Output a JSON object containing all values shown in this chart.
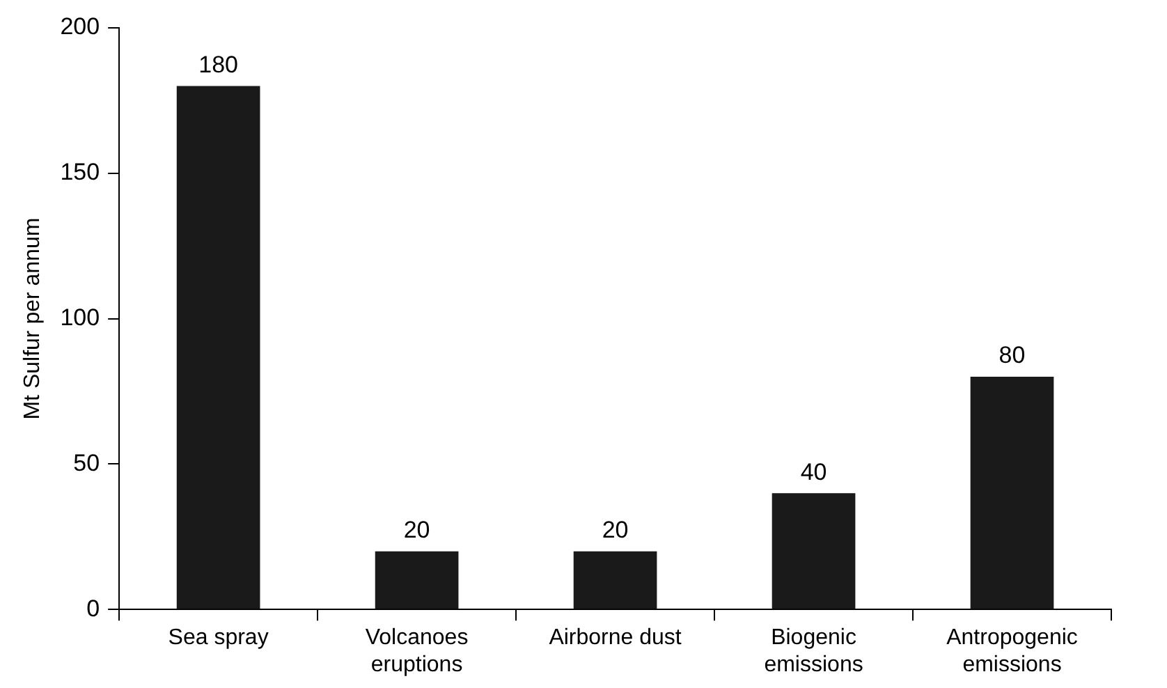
{
  "chart_data": {
    "type": "bar",
    "ylabel": "Mt Sulfur per annum",
    "categories": [
      "Sea spray",
      "Volcanoes eruptions",
      "Airborne dust",
      "Biogenic emissions",
      "Antropogenic emissions"
    ],
    "values": [
      180,
      20,
      20,
      40,
      80
    ],
    "color": "#1a1a1a",
    "ylim": [
      0,
      200
    ],
    "yticks": [
      0,
      50,
      100,
      150,
      200
    ],
    "grid": false,
    "legend": false,
    "data_labels": true
  }
}
